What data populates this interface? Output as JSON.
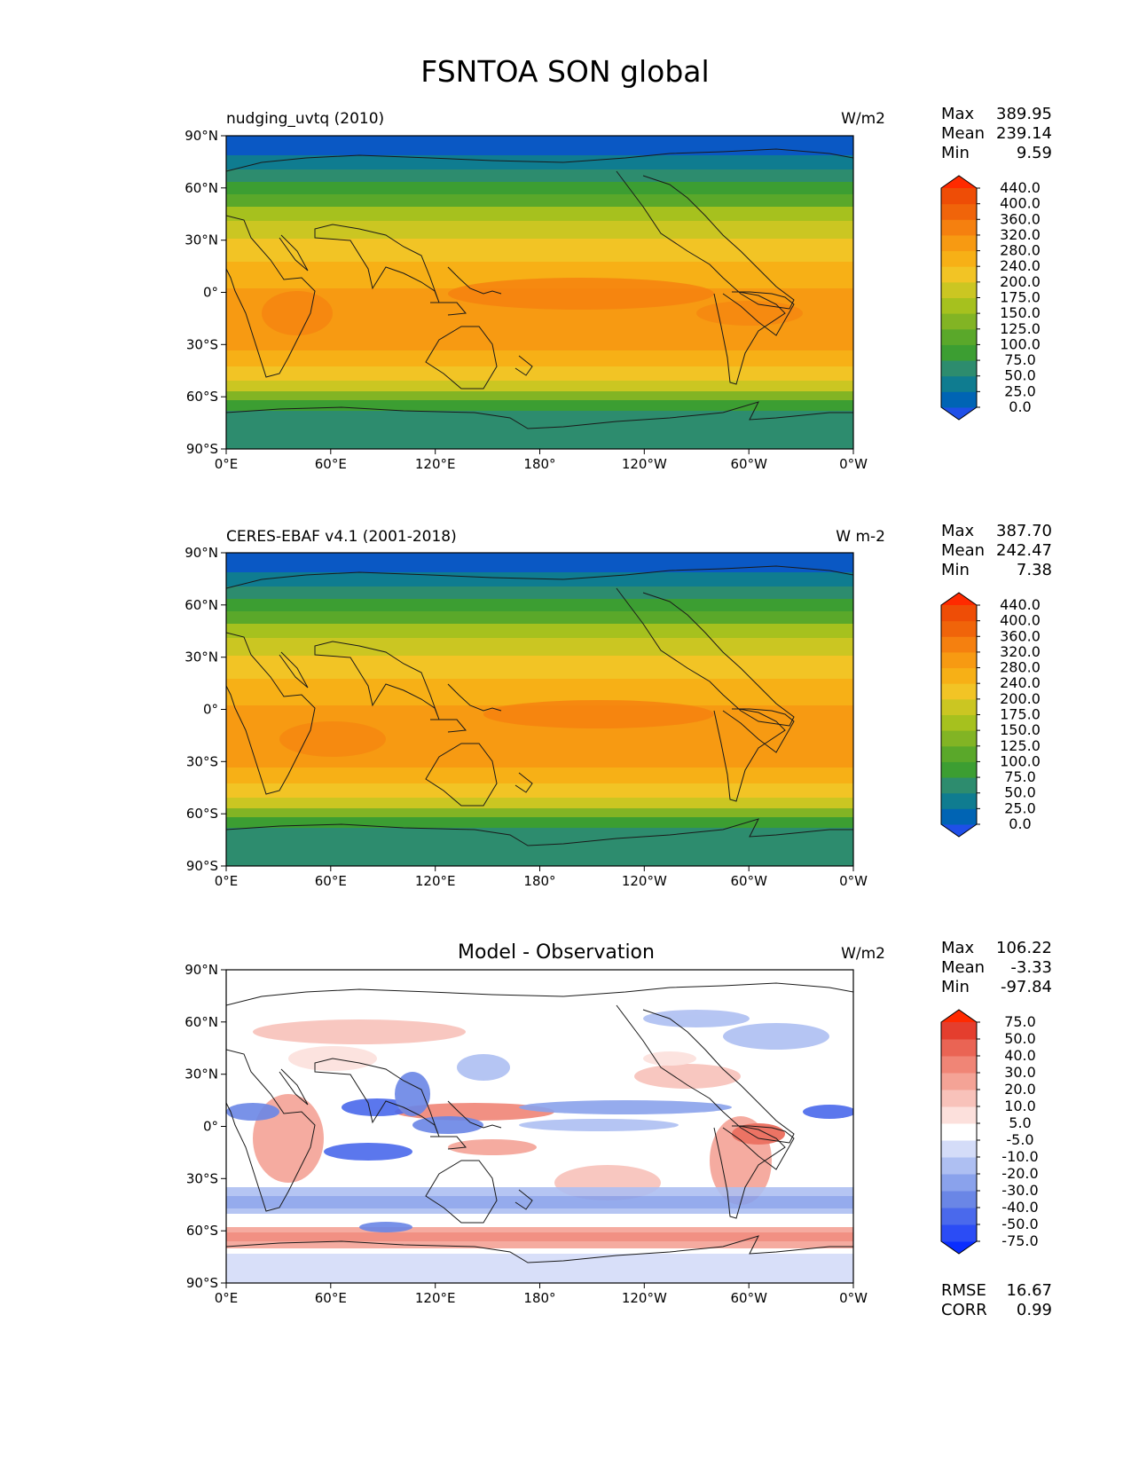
{
  "title": "FSNTOA SON global",
  "x_ticks": [
    "0°E",
    "60°E",
    "120°E",
    "180°",
    "120°W",
    "60°W",
    "0°W"
  ],
  "y_ticks": [
    "90°N",
    "60°N",
    "30°N",
    "0°",
    "30°S",
    "60°S",
    "90°S"
  ],
  "panels": [
    {
      "left_title": "nudging_uvtq (2010)",
      "center_title": "",
      "units": "W/m2",
      "stats": [
        {
          "label": "Max",
          "value": "389.95"
        },
        {
          "label": "Mean",
          "value": "239.14"
        },
        {
          "label": "Min",
          "value": "9.59"
        }
      ],
      "colorbar": {
        "levels": [
          "0.0",
          "25.0",
          "50.0",
          "75.0",
          "100.0",
          "125.0",
          "150.0",
          "175.0",
          "200.0",
          "240.0",
          "280.0",
          "320.0",
          "360.0",
          "400.0",
          "440.0"
        ],
        "colors": [
          "#1f4fe8",
          "#0064b4",
          "#0f7c90",
          "#2d8c6e",
          "#3c9e32",
          "#5aa82a",
          "#82b424",
          "#a6c11e",
          "#cbc622",
          "#f2c425",
          "#f7b016",
          "#f79a12",
          "#f5800f",
          "#f0640a",
          "#ee4d06",
          "#ff2a00"
        ]
      }
    },
    {
      "left_title": "CERES-EBAF v4.1 (2001-2018)",
      "center_title": "",
      "units": "W m-2",
      "stats": [
        {
          "label": "Max",
          "value": "387.70"
        },
        {
          "label": "Mean",
          "value": "242.47"
        },
        {
          "label": "Min",
          "value": "7.38"
        }
      ],
      "colorbar": {
        "levels": [
          "0.0",
          "25.0",
          "50.0",
          "75.0",
          "100.0",
          "125.0",
          "150.0",
          "175.0",
          "200.0",
          "240.0",
          "280.0",
          "320.0",
          "360.0",
          "400.0",
          "440.0"
        ],
        "colors": [
          "#1f4fe8",
          "#0064b4",
          "#0f7c90",
          "#2d8c6e",
          "#3c9e32",
          "#5aa82a",
          "#82b424",
          "#a6c11e",
          "#cbc622",
          "#f2c425",
          "#f7b016",
          "#f79a12",
          "#f5800f",
          "#f0640a",
          "#ee4d06",
          "#ff2a00"
        ]
      }
    },
    {
      "left_title": "",
      "center_title": "Model - Observation",
      "units": "W/m2",
      "stats": [
        {
          "label": "Max",
          "value": "106.22"
        },
        {
          "label": "Mean",
          "value": "-3.33"
        },
        {
          "label": "Min",
          "value": "-97.84"
        }
      ],
      "colorbar": {
        "levels": [
          "-75.0",
          "-50.0",
          "-40.0",
          "-30.0",
          "-20.0",
          "-10.0",
          "-5.0",
          "5.0",
          "10.0",
          "20.0",
          "30.0",
          "40.0",
          "50.0",
          "75.0"
        ],
        "colors": [
          "#0a2dff",
          "#2b4cf5",
          "#4a69ec",
          "#6a86e6",
          "#8aa2ec",
          "#aebff2",
          "#d4dcf8",
          "#ffffff",
          "#fce0dc",
          "#f8c2ba",
          "#f4a396",
          "#f08576",
          "#ea6454",
          "#e43e2e",
          "#ff2a00"
        ]
      },
      "metrics": [
        {
          "label": "RMSE",
          "value": "16.67"
        },
        {
          "label": "CORR",
          "value": "0.99"
        }
      ]
    }
  ],
  "chart_data": {
    "type": "heatmap",
    "title": "FSNTOA SON global",
    "panels": [
      {
        "title": "nudging_uvtq (2010)",
        "units": "W/m2",
        "stats": {
          "max": 389.95,
          "mean": 239.14,
          "min": 9.59
        },
        "xlim": [
          0,
          360
        ],
        "ylim": [
          -90,
          90
        ],
        "zonal_band_values": [
          {
            "lat": 85,
            "value": 20
          },
          {
            "lat": 70,
            "value": 70
          },
          {
            "lat": 55,
            "value": 150
          },
          {
            "lat": 40,
            "value": 230
          },
          {
            "lat": 25,
            "value": 285
          },
          {
            "lat": 10,
            "value": 320
          },
          {
            "lat": 0,
            "value": 330
          },
          {
            "lat": -15,
            "value": 330
          },
          {
            "lat": -30,
            "value": 300
          },
          {
            "lat": -45,
            "value": 225
          },
          {
            "lat": -58,
            "value": 140
          },
          {
            "lat": -68,
            "value": 100
          },
          {
            "lat": -80,
            "value": 75
          }
        ]
      },
      {
        "title": "CERES-EBAF v4.1 (2001-2018)",
        "units": "W m-2",
        "stats": {
          "max": 387.7,
          "mean": 242.47,
          "min": 7.38
        },
        "xlim": [
          0,
          360
        ],
        "ylim": [
          -90,
          90
        ],
        "zonal_band_values": [
          {
            "lat": 85,
            "value": 20
          },
          {
            "lat": 70,
            "value": 70
          },
          {
            "lat": 55,
            "value": 150
          },
          {
            "lat": 40,
            "value": 230
          },
          {
            "lat": 25,
            "value": 285
          },
          {
            "lat": 10,
            "value": 320
          },
          {
            "lat": 0,
            "value": 330
          },
          {
            "lat": -15,
            "value": 335
          },
          {
            "lat": -30,
            "value": 305
          },
          {
            "lat": -45,
            "value": 230
          },
          {
            "lat": -58,
            "value": 145
          },
          {
            "lat": -68,
            "value": 100
          },
          {
            "lat": -80,
            "value": 75
          }
        ]
      },
      {
        "title": "Model - Observation",
        "units": "W/m2",
        "stats": {
          "max": 106.22,
          "mean": -3.33,
          "min": -97.84
        },
        "rmse": 16.67,
        "corr": 0.99,
        "xlim": [
          0,
          360
        ],
        "ylim": [
          -90,
          90
        ]
      }
    ]
  }
}
